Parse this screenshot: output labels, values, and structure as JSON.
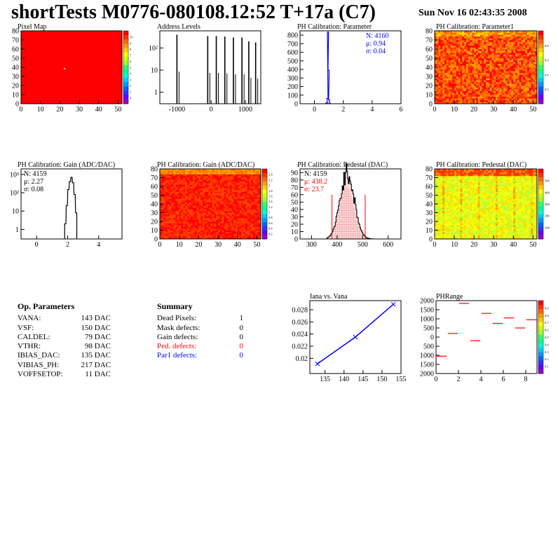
{
  "header": {
    "title": "shortTests M0776-080108.12:52 T+17a (C7)",
    "date": "Sun Nov 16 02:43:35 2008"
  },
  "op_parameters": {
    "heading": "Op. Parameters",
    "rows": [
      {
        "name": "VANA:",
        "value": "143 DAC"
      },
      {
        "name": "VSF:",
        "value": "150 DAC"
      },
      {
        "name": "CALDEL:",
        "value": "79 DAC"
      },
      {
        "name": "VTHR:",
        "value": "98 DAC"
      },
      {
        "name": "IBIAS_DAC:",
        "value": "135 DAC"
      },
      {
        "name": "VIBIAS_PH:",
        "value": "217 DAC"
      },
      {
        "name": "VOFFSETOP:",
        "value": "11 DAC"
      }
    ]
  },
  "summary": {
    "heading": "Summary",
    "rows": [
      {
        "name": "Dead Pixels:",
        "value": "1",
        "color": "#000000"
      },
      {
        "name": "Mask defects:",
        "value": "0",
        "color": "#000000"
      },
      {
        "name": "Gain defects:",
        "value": "0",
        "color": "#000000"
      },
      {
        "name": "Ped. defects:",
        "value": "0",
        "color": "#ff0000"
      },
      {
        "name": "Par1 defects:",
        "value": "0",
        "color": "#0000ff"
      }
    ]
  },
  "colors": {
    "hist": "#000000",
    "red": "#ff0000",
    "blue": "#0000ff",
    "pixel_fill": "#ff0000"
  },
  "chart_data": [
    {
      "id": "pixelmap",
      "type": "heatmap",
      "title": "Pixel Map",
      "xlim": [
        0,
        52
      ],
      "ylim": [
        0,
        80
      ],
      "xticks": [
        0,
        10,
        20,
        30,
        40,
        50
      ],
      "yticks": [
        0,
        10,
        20,
        30,
        40,
        50,
        60,
        70,
        80
      ],
      "zlim": [
        0,
        10
      ],
      "zticks": [
        "0",
        "1",
        "2",
        "3",
        "4",
        "5",
        "6",
        "7",
        "8",
        "9",
        "10"
      ],
      "uniform_value": 10,
      "dead_pixels": [
        [
          22,
          38
        ]
      ]
    },
    {
      "id": "address",
      "type": "bar",
      "title": "Address Levels",
      "log_y": true,
      "xlim": [
        -1500,
        1450
      ],
      "ylim": [
        0.3,
        600
      ],
      "xticks": [
        -1000,
        0,
        1000
      ],
      "yticks": [
        1,
        10,
        100
      ],
      "yticklabels": [
        "1",
        "10",
        "10²"
      ],
      "peaks": [
        {
          "x": -1000,
          "h": 400
        },
        {
          "x": -100,
          "h": 350
        },
        {
          "x": 150,
          "h": 350
        },
        {
          "x": 400,
          "h": 330
        },
        {
          "x": 650,
          "h": 300
        },
        {
          "x": 900,
          "h": 300
        },
        {
          "x": 1100,
          "h": 200
        },
        {
          "x": 1300,
          "h": 180
        }
      ]
    },
    {
      "id": "phpar",
      "type": "bar",
      "title": "PH Calibration: Parameter",
      "xlim": [
        -1,
        6
      ],
      "ylim": [
        0,
        850
      ],
      "xticks": [
        0,
        2,
        4,
        6
      ],
      "yticks": [
        0,
        100,
        200,
        300,
        400,
        500,
        600,
        700,
        800
      ],
      "bins": [
        [
          0.82,
          2
        ],
        [
          0.86,
          10
        ],
        [
          0.9,
          60
        ],
        [
          0.94,
          835
        ],
        [
          0.98,
          390
        ],
        [
          1.02,
          45
        ],
        [
          1.06,
          5
        ]
      ],
      "stats": [
        {
          "label": "N: 4160",
          "color": "#0000ff"
        },
        {
          "label": "μ: 0.94",
          "color": "#0000ff"
        },
        {
          "label": "σ: 0.04",
          "color": "#0000ff"
        }
      ]
    },
    {
      "id": "phpar1",
      "type": "heatmap",
      "title": "PH Calibration: Parameter1",
      "xlim": [
        0,
        52
      ],
      "ylim": [
        0,
        80
      ],
      "xticks": [
        0,
        10,
        20,
        30,
        40,
        50
      ],
      "yticks": [
        0,
        10,
        20,
        30,
        40,
        50,
        60,
        70,
        80
      ],
      "zlim": [
        0,
        1
      ],
      "zticks": [
        "0.2",
        "0.4",
        "0.6",
        "0.8"
      ]
    },
    {
      "id": "gain",
      "type": "bar",
      "title": "PH Calibration: Gain (ADC/DAC)",
      "log_y": true,
      "xlim": [
        -1,
        5.5
      ],
      "ylim": [
        0.3,
        2000
      ],
      "xticks": [
        0,
        2,
        4
      ],
      "yticks": [
        1,
        10,
        100,
        1000
      ],
      "yticklabels": [
        "1",
        "10",
        "10²",
        "10³"
      ],
      "bins": [
        [
          1.85,
          2
        ],
        [
          1.95,
          20
        ],
        [
          2.05,
          150
        ],
        [
          2.15,
          400
        ],
        [
          2.25,
          700
        ],
        [
          2.35,
          350
        ],
        [
          2.45,
          80
        ],
        [
          2.55,
          8
        ]
      ],
      "stats": [
        {
          "label": "N: 4159",
          "color": "#000000"
        },
        {
          "label": "μ: 2.27",
          "color": "#000000"
        },
        {
          "label": "σ: 0.08",
          "color": "#000000"
        }
      ]
    },
    {
      "id": "gainmap",
      "type": "heatmap",
      "title": "PH Calibration: Gain (ADC/DAC)",
      "xlim": [
        0,
        52
      ],
      "ylim": [
        0,
        80
      ],
      "xticks": [
        0,
        10,
        20,
        30,
        40,
        50
      ],
      "yticks": [
        0,
        10,
        20,
        30,
        40,
        50,
        60,
        70,
        80
      ],
      "zlim": [
        0,
        2.4
      ],
      "zticks": [
        "0.2",
        "0.4",
        "0.6",
        "0.8",
        "1",
        "1.2",
        "1.4",
        "1.6",
        "1.8",
        "2",
        "2.2",
        "2.4"
      ]
    },
    {
      "id": "ped",
      "type": "bar",
      "title": "PH Calibration: Pedestal (DAC)",
      "xlim": [
        255,
        650
      ],
      "ylim": [
        0,
        95
      ],
      "xticks": [
        300,
        400,
        500,
        600
      ],
      "yticks": [
        0,
        10,
        20,
        30,
        40,
        50,
        60,
        70,
        80,
        90
      ],
      "mean": 438.2,
      "sigma": 23.7,
      "peak": 90,
      "cut_lines": [
        380,
        510
      ],
      "stats": [
        {
          "label": "N: 4159",
          "color": "#000000"
        },
        {
          "label": "μ: 438.2",
          "color": "#ff0000"
        },
        {
          "label": "σ: 23.7",
          "color": "#ff0000"
        }
      ]
    },
    {
      "id": "pedmap",
      "type": "heatmap",
      "title": "PH Calibration: Pedestal (DAC)",
      "xlim": [
        0,
        52
      ],
      "ylim": [
        0,
        80
      ],
      "xticks": [
        0,
        10,
        20,
        30,
        40,
        50
      ],
      "yticks": [
        0,
        10,
        20,
        30,
        40,
        50,
        60,
        70,
        80
      ],
      "zlim": [
        0,
        600
      ],
      "zticks": [
        "100",
        "200",
        "300",
        "400",
        "500"
      ]
    },
    {
      "id": "iana",
      "type": "line",
      "title": "Iana vs. Vana",
      "xlim": [
        131,
        155
      ],
      "ylim": [
        0.0175,
        0.0295
      ],
      "xticks": [
        135,
        140,
        145,
        150,
        155
      ],
      "yticks": [
        0.02,
        0.022,
        0.024,
        0.026,
        0.028
      ],
      "x": [
        133,
        143,
        153
      ],
      "y": [
        0.0191,
        0.0235,
        0.0289
      ]
    },
    {
      "id": "phrange",
      "type": "scatter",
      "title": "PHRange",
      "xlim": [
        0,
        9
      ],
      "ylim": [
        -2000,
        2000
      ],
      "xticks": [
        0,
        2,
        4,
        6,
        8
      ],
      "yticks": [
        -2000,
        -1500,
        -1000,
        -500,
        0,
        500,
        1000,
        1500,
        2000
      ],
      "yticklabels": [
        "2000",
        "1500",
        "1000",
        "500",
        "0",
        "500",
        "1000",
        "1500",
        "2000"
      ],
      "zticks": [
        "0.1",
        "0.2",
        "0.3",
        "0.4",
        "0.5",
        "0.6",
        "0.7",
        "0.8",
        "0.9"
      ],
      "x": [
        0.5,
        1.5,
        2.5,
        3.5,
        4.5,
        5.5,
        6.5,
        7.5,
        8.5
      ],
      "y": [
        -1050,
        200,
        1850,
        -200,
        1300,
        750,
        1050,
        500,
        950
      ]
    }
  ]
}
